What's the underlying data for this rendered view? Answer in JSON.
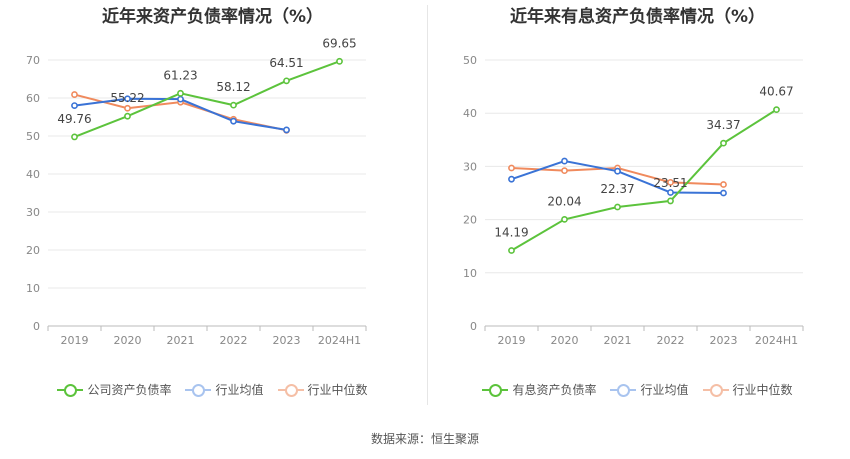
{
  "colors": {
    "main": "#5cc33c",
    "avg": "#3a73d6",
    "median": "#f08a5d"
  },
  "source": "数据来源：恒生聚源",
  "chart_data": [
    {
      "type": "line",
      "title": "近年来资产负债率情况（%）",
      "x": [
        "2019",
        "2020",
        "2021",
        "2022",
        "2023",
        "2024H1"
      ],
      "ylim": [
        0,
        70
      ],
      "yticks": [
        0,
        10,
        20,
        30,
        40,
        50,
        60,
        70
      ],
      "grid": true,
      "legend_position": "bottom",
      "series": [
        {
          "name": "公司资产负债率",
          "values": [
            49.76,
            55.22,
            61.23,
            58.12,
            64.51,
            69.65
          ],
          "labels": [
            "49.76",
            "55.22",
            "61.23",
            "58.12",
            "64.51",
            "69.65"
          ]
        },
        {
          "name": "行业均值",
          "values": [
            58.0,
            59.8,
            59.7,
            53.9,
            51.6,
            null
          ]
        },
        {
          "name": "行业中位数",
          "values": [
            60.9,
            57.3,
            58.9,
            54.4,
            51.5,
            null
          ]
        }
      ]
    },
    {
      "type": "line",
      "title": "近年来有息资产负债率情况（%）",
      "x": [
        "2019",
        "2020",
        "2021",
        "2022",
        "2023",
        "2024H1"
      ],
      "ylim": [
        0,
        50
      ],
      "yticks": [
        0,
        10,
        20,
        30,
        40,
        50
      ],
      "grid": true,
      "legend_position": "bottom",
      "series": [
        {
          "name": "有息资产负债率",
          "values": [
            14.19,
            20.04,
            22.37,
            23.51,
            34.37,
            40.67
          ],
          "labels": [
            "14.19",
            "20.04",
            "22.37",
            "23.51",
            "34.37",
            "40.67"
          ]
        },
        {
          "name": "行业均值",
          "values": [
            27.6,
            31.0,
            29.1,
            25.1,
            25.0,
            null
          ]
        },
        {
          "name": "行业中位数",
          "values": [
            29.7,
            29.2,
            29.7,
            27.0,
            26.6,
            null
          ]
        }
      ]
    }
  ]
}
